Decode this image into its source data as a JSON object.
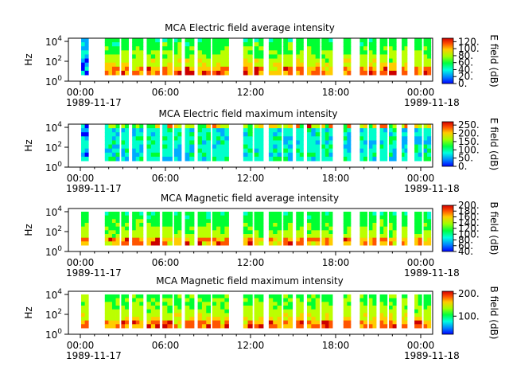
{
  "chart_data": [
    {
      "type": "heatmap",
      "title": "MCA  Electric field average intensity",
      "ylabel": "Hz",
      "ylim": [
        1,
        30000
      ],
      "yscale": "log",
      "yticks": [
        {
          "exp": "0"
        },
        {
          "exp": "2"
        },
        {
          "exp": "4"
        }
      ],
      "x_ticks": [
        "00:00",
        "06:00",
        "12:00",
        "18:00",
        "00:00"
      ],
      "x_dates": [
        "1989-11-17",
        "1989-11-18"
      ],
      "colorbar": {
        "label": "E field (dB)",
        "range": [
          0,
          130
        ],
        "ticks": [
          "0.",
          "20.",
          "40.",
          "60.",
          "80.",
          "100.",
          "120."
        ]
      }
    },
    {
      "type": "heatmap",
      "title": "MCA  Electric field maximum intensity",
      "ylabel": "Hz",
      "ylim": [
        1,
        30000
      ],
      "yscale": "log",
      "yticks": [
        {
          "exp": "0"
        },
        {
          "exp": "2"
        },
        {
          "exp": "4"
        }
      ],
      "x_ticks": [
        "00:00",
        "06:00",
        "12:00",
        "18:00",
        "00:00"
      ],
      "x_dates": [
        "1989-11-17",
        "1989-11-18"
      ],
      "colorbar": {
        "label": "E field (dB)",
        "range": [
          0,
          270
        ],
        "ticks": [
          "0.",
          "50.",
          "100.",
          "150.",
          "200.",
          "250."
        ]
      }
    },
    {
      "type": "heatmap",
      "title": "MCA  Magnetic field average intensity",
      "ylabel": "Hz",
      "ylim": [
        1,
        30000
      ],
      "yscale": "log",
      "yticks": [
        {
          "exp": "0"
        },
        {
          "exp": "2"
        },
        {
          "exp": "4"
        }
      ],
      "x_ticks": [
        "00:00",
        "06:00",
        "12:00",
        "18:00",
        "00:00"
      ],
      "x_dates": [
        "1989-11-17",
        "1989-11-18"
      ],
      "colorbar": {
        "label": "B field (dB)",
        "range": [
          40,
          200
        ],
        "ticks": [
          "40.",
          "60.",
          "80.",
          "100.",
          "120.",
          "140.",
          "160.",
          "180.",
          "200."
        ]
      }
    },
    {
      "type": "heatmap",
      "title": "MCA  Magnetic field maximum intensity",
      "ylabel": "Hz",
      "ylim": [
        1,
        30000
      ],
      "yscale": "log",
      "yticks": [
        {
          "exp": "0"
        },
        {
          "exp": "2"
        },
        {
          "exp": "4"
        }
      ],
      "x_ticks": [
        "00:00",
        "06:00",
        "12:00",
        "18:00",
        "00:00"
      ],
      "x_dates": [
        "1989-11-17",
        "1989-11-18"
      ],
      "colorbar": {
        "label": "B field (dB)",
        "range": [
          20,
          210
        ],
        "ticks": [
          "100.",
          "200."
        ]
      }
    }
  ],
  "palette": [
    "#0000ff",
    "#00aaff",
    "#00ffcc",
    "#00ff33",
    "#bbff00",
    "#ffcc00",
    "#ff5500",
    "#cc0000"
  ]
}
